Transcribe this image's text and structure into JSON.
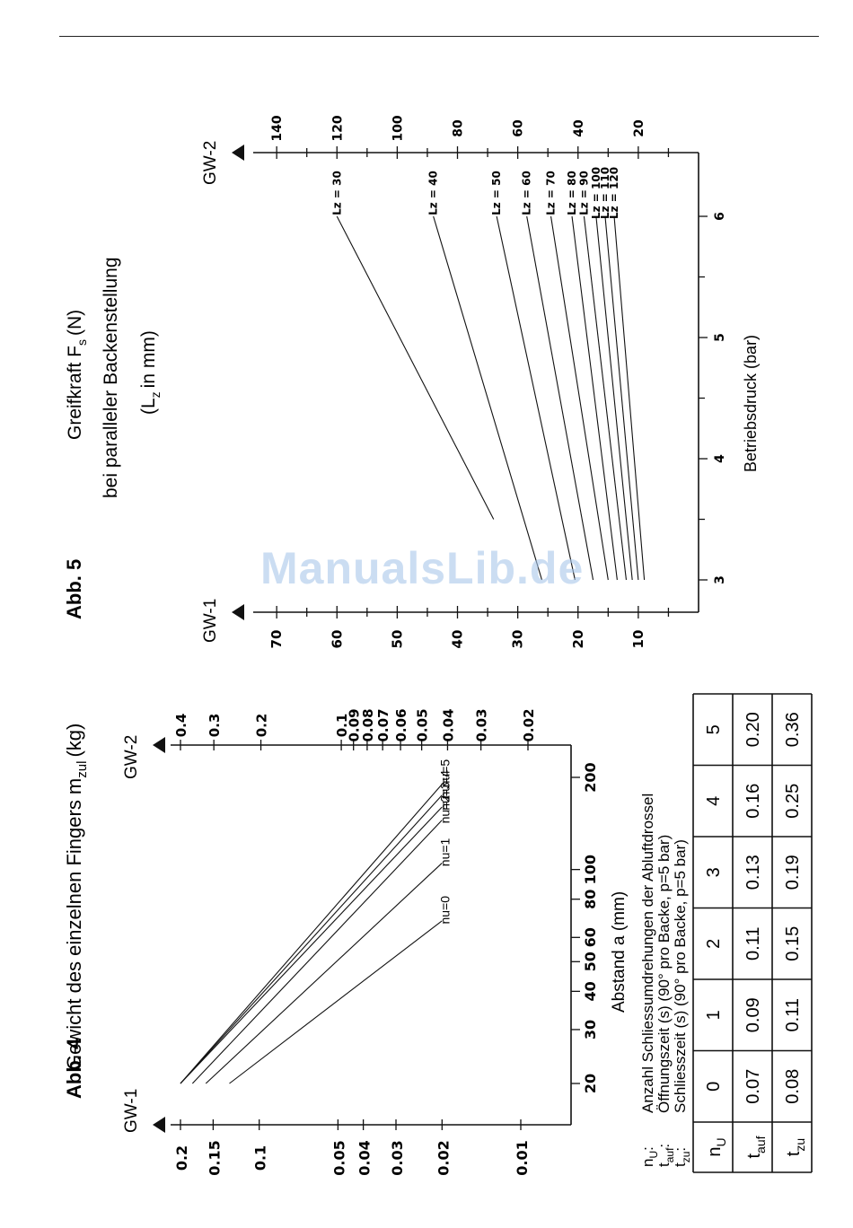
{
  "watermark": "ManualsLib.de",
  "abb4": {
    "label": "Abb. 4",
    "title": "Gewicht des einzelnen Fingers m",
    "title_sub": "zul",
    "title_unit": "(kg)",
    "gw1": "GW-1",
    "gw2": "GW-2",
    "xlabel": "Abstand a (mm)",
    "legend": {
      "nu_sym": "n",
      "nu_sub": "U",
      "nu_text": "Anzahl Schliessumdrehungen der Abluftdrossel",
      "tauf_sym": "t",
      "tauf_sub": "auf",
      "tauf_text": "Öffnungszeit (s) (90° pro Backe, p=5 bar)",
      "tzu_sym": "t",
      "tzu_sub": "zu",
      "tzu_text": "Schliesszeit (s) (90° pro Backe, p=5 bar)"
    },
    "table": {
      "headers": [
        "0",
        "1",
        "2",
        "3",
        "4",
        "5"
      ],
      "tauf": [
        "0.07",
        "0.09",
        "0.11",
        "0.13",
        "0.16",
        "0.20"
      ],
      "tzu": [
        "0.08",
        "0.11",
        "0.15",
        "0.19",
        "0.25",
        "0.36"
      ]
    }
  },
  "abb5": {
    "label": "Abb. 5",
    "title_line1": "Greifkraft F",
    "title_line1_sub": "s",
    "title_line1_unit": "(N)",
    "title_line2": "bei paralleler Backenstellung",
    "title_line3_open": "(L",
    "title_line3_sub": "z",
    "title_line3_close": "in mm)",
    "gw1": "GW-1",
    "gw2": "GW-2",
    "xlabel": "Betriebsdruck (bar)"
  },
  "chart_data": [
    {
      "type": "line",
      "title": "Gewicht des einzelnen Fingers mzul (kg)",
      "xlabel": "Abstand a (mm)",
      "x_scale": "log",
      "y_scale": "log",
      "x_ticks": [
        20,
        30,
        40,
        50,
        60,
        80,
        100,
        200
      ],
      "y_ticks_left": [
        0.01,
        0.02,
        0.03,
        0.04,
        0.05,
        0.1,
        0.15,
        0.2
      ],
      "y_ticks_left_labels": [
        "0.01",
        "0.02",
        "0.03",
        "0.04",
        "0.05",
        "0.1",
        "0.15",
        "0.2"
      ],
      "y_ticks_right": [
        0.02,
        0.03,
        0.04,
        0.05,
        0.06,
        0.07,
        0.08,
        0.09,
        0.1,
        0.2,
        0.3,
        0.4
      ],
      "y_ticks_right_labels": [
        "0.02",
        "0.03",
        "0.04",
        "0.05",
        "0.06",
        "0.07",
        "0.08",
        "0.09",
        "0.1",
        "0.2",
        "0.3",
        "0.4"
      ],
      "series": [
        {
          "name": "nu=0",
          "x": [
            20,
            68
          ],
          "y_left": [
            0.13,
            0.02
          ]
        },
        {
          "name": "nu=1",
          "x": [
            20,
            105
          ],
          "y_left": [
            0.16,
            0.02
          ]
        },
        {
          "name": "nu=2",
          "x": [
            20,
            145
          ],
          "y_left": [
            0.18,
            0.02
          ]
        },
        {
          "name": "nu=3",
          "x": [
            20,
            160
          ],
          "y_left": [
            0.2,
            0.02
          ]
        },
        {
          "name": "nu=4",
          "x": [
            20,
            175
          ],
          "y_left": [
            0.2,
            0.02
          ]
        },
        {
          "name": "nu=5",
          "x": [
            20,
            190
          ],
          "y_left": [
            0.2,
            0.02
          ]
        }
      ]
    },
    {
      "type": "line",
      "title": "Greifkraft Fs (N) bei paralleler Backenstellung (Lz in mm)",
      "xlabel": "Betriebsdruck (bar)",
      "x_ticks": [
        3,
        4,
        5,
        6
      ],
      "xlim": [
        2.95,
        6.3
      ],
      "y_ticks_left": [
        10,
        20,
        30,
        40,
        50,
        60,
        70
      ],
      "ylim_left": [
        0,
        73
      ],
      "y_ticks_right": [
        20,
        40,
        60,
        80,
        100,
        120,
        140
      ],
      "ylim_right": [
        0,
        146
      ],
      "series": [
        {
          "name": "Lz = 30",
          "x": [
            3.5,
            6.0
          ],
          "y_right": [
            68,
            120
          ]
        },
        {
          "name": "Lz = 40",
          "x": [
            3.0,
            6.0
          ],
          "y_right": [
            52,
            88
          ]
        },
        {
          "name": "Lz = 50",
          "x": [
            3.0,
            6.0
          ],
          "y_right": [
            41,
            67
          ]
        },
        {
          "name": "Lz = 60",
          "x": [
            3.0,
            6.0
          ],
          "y_right": [
            35,
            57
          ]
        },
        {
          "name": "Lz = 70",
          "x": [
            3.0,
            6.0
          ],
          "y_right": [
            30,
            49
          ]
        },
        {
          "name": "Lz = 80",
          "x": [
            3.0,
            6.0
          ],
          "y_right": [
            27,
            42
          ]
        },
        {
          "name": "Lz = 90",
          "x": [
            3.0,
            6.0
          ],
          "y_right": [
            24,
            38
          ]
        },
        {
          "name": "Lz = 100",
          "x": [
            3.0,
            6.0
          ],
          "y_right": [
            22,
            34
          ]
        },
        {
          "name": "Lz = 110",
          "x": [
            3.0,
            6.0
          ],
          "y_right": [
            20,
            31
          ]
        },
        {
          "name": "Lz = 120",
          "x": [
            3.0,
            6.0
          ],
          "y_right": [
            18,
            28
          ]
        }
      ]
    }
  ]
}
